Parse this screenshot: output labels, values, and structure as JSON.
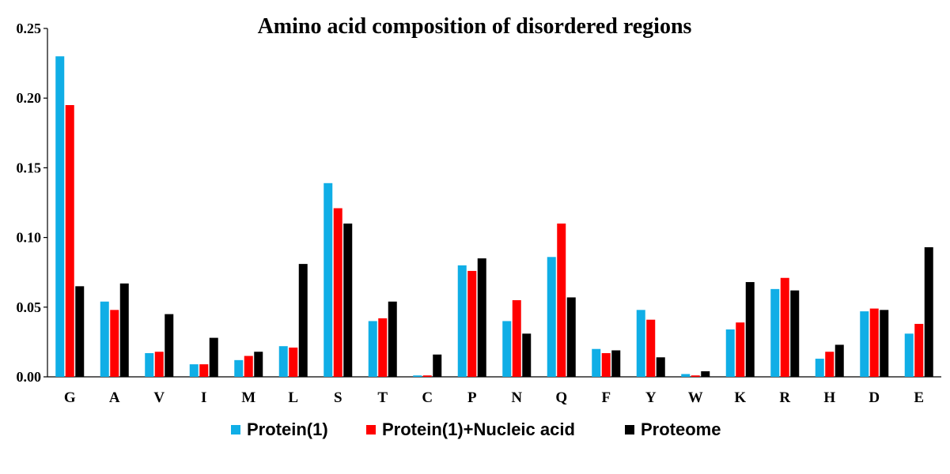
{
  "chart_data": {
    "type": "bar",
    "title": "Amino acid composition of disordered regions",
    "xlabel": "",
    "ylabel": "",
    "ylim": [
      0,
      0.25
    ],
    "yticks": [
      "0.00",
      "0.05",
      "0.10",
      "0.15",
      "0.20",
      "0.25"
    ],
    "grid": false,
    "legend_position": "bottom",
    "categories": [
      "G",
      "A",
      "V",
      "I",
      "M",
      "L",
      "S",
      "T",
      "C",
      "P",
      "N",
      "Q",
      "F",
      "Y",
      "W",
      "K",
      "R",
      "H",
      "D",
      "E"
    ],
    "series": [
      {
        "name": "Protein(1)",
        "color": "#10aee6",
        "values": [
          0.23,
          0.054,
          0.017,
          0.009,
          0.012,
          0.022,
          0.139,
          0.04,
          0.001,
          0.08,
          0.04,
          0.086,
          0.02,
          0.048,
          0.002,
          0.034,
          0.063,
          0.013,
          0.047,
          0.031
        ]
      },
      {
        "name": "Protein(1)+Nucleic acid",
        "color": "#ff0000",
        "values": [
          0.195,
          0.048,
          0.018,
          0.009,
          0.015,
          0.021,
          0.121,
          0.042,
          0.001,
          0.076,
          0.055,
          0.11,
          0.017,
          0.041,
          0.001,
          0.039,
          0.071,
          0.018,
          0.049,
          0.038
        ]
      },
      {
        "name": "Proteome",
        "color": "#000000",
        "values": [
          0.065,
          0.067,
          0.045,
          0.028,
          0.018,
          0.081,
          0.11,
          0.054,
          0.016,
          0.085,
          0.031,
          0.057,
          0.019,
          0.014,
          0.004,
          0.068,
          0.062,
          0.023,
          0.048,
          0.093
        ]
      }
    ]
  }
}
